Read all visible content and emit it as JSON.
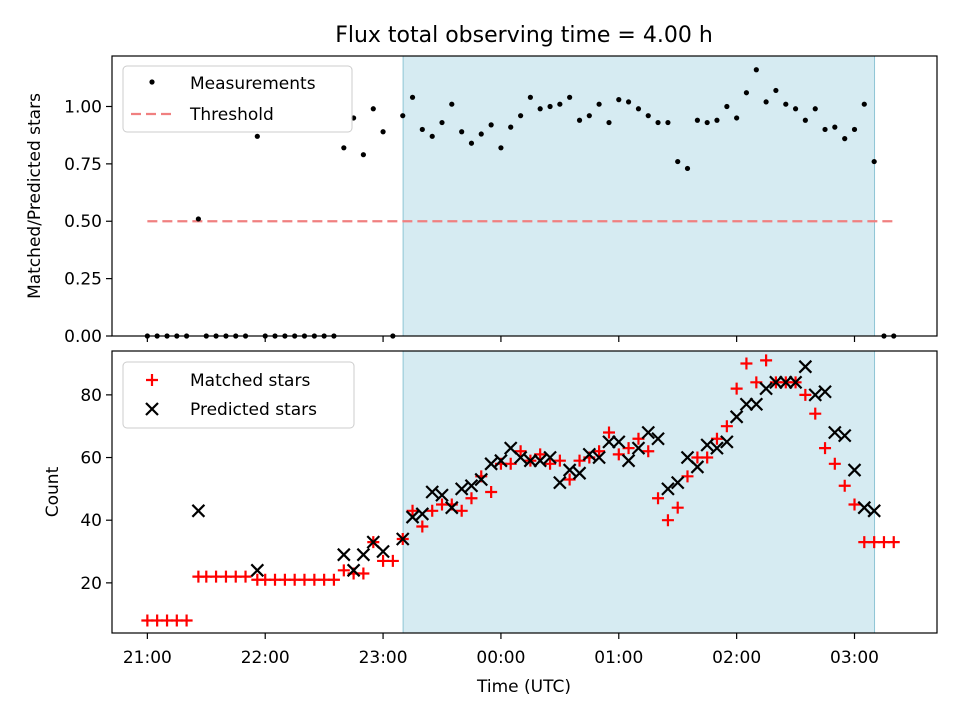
{
  "title": "Flux total observing time = 4.00 h",
  "chart_data": [
    {
      "type": "scatter",
      "panel": "ratio",
      "ylabel": "Matched/Predicted stars",
      "ylim": [
        0,
        1.22
      ],
      "yticks": [
        0.0,
        0.25,
        0.5,
        0.75,
        1.0
      ],
      "ytick_labels": [
        "0.00",
        "0.25",
        "0.50",
        "0.75",
        "1.00"
      ],
      "xlim": [
        -0.3,
        6.7
      ],
      "shaded_span": [
        2.17,
        6.17
      ],
      "legend_position": "upper-left",
      "threshold": {
        "name": "Threshold",
        "value": 0.5,
        "x_range": [
          0.0,
          6.33
        ],
        "color": "#f08080"
      },
      "series": [
        {
          "name": "Measurements",
          "color": "#000000",
          "x": [
            0.0,
            0.083,
            0.167,
            0.25,
            0.333,
            0.433,
            0.5,
            0.583,
            0.667,
            0.75,
            0.833,
            0.933,
            1.0,
            1.083,
            1.167,
            1.25,
            1.333,
            1.417,
            1.5,
            1.583,
            1.667,
            1.75,
            1.833,
            1.917,
            2.0,
            2.083,
            2.167,
            2.25,
            2.333,
            2.417,
            2.5,
            2.583,
            2.667,
            2.75,
            2.833,
            2.917,
            3.0,
            3.083,
            3.167,
            3.25,
            3.333,
            3.417,
            3.5,
            3.583,
            3.667,
            3.75,
            3.833,
            3.917,
            4.0,
            4.083,
            4.167,
            4.25,
            4.333,
            4.417,
            4.5,
            4.583,
            4.667,
            4.75,
            4.833,
            4.917,
            5.0,
            5.083,
            5.167,
            5.25,
            5.333,
            5.417,
            5.5,
            5.583,
            5.667,
            5.75,
            5.833,
            5.917,
            6.0,
            6.083,
            6.167,
            6.25,
            6.333
          ],
          "y": [
            0.0,
            0.0,
            0.0,
            0.0,
            0.0,
            0.51,
            0.0,
            0.0,
            0.0,
            0.0,
            0.0,
            0.87,
            0.0,
            0.0,
            0.0,
            0.0,
            0.0,
            0.0,
            0.0,
            0.0,
            0.82,
            0.95,
            0.79,
            0.99,
            0.89,
            0.0,
            0.96,
            1.04,
            0.9,
            0.87,
            0.93,
            1.01,
            0.89,
            0.84,
            0.88,
            0.92,
            0.82,
            0.91,
            0.96,
            1.04,
            0.99,
            1.0,
            1.01,
            1.04,
            0.94,
            0.96,
            1.01,
            0.93,
            1.03,
            1.02,
            0.99,
            0.96,
            0.93,
            0.93,
            0.76,
            0.73,
            0.94,
            0.93,
            0.94,
            1.0,
            0.95,
            1.06,
            1.16,
            1.02,
            1.07,
            1.01,
            0.99,
            0.94,
            0.99,
            0.9,
            0.91,
            0.86,
            0.9,
            1.01,
            0.76,
            0.0,
            0.0
          ]
        }
      ]
    },
    {
      "type": "scatter",
      "panel": "counts",
      "xlabel": "Time (UTC)",
      "ylabel": "Count",
      "ylim": [
        4,
        94
      ],
      "yticks": [
        20,
        40,
        60,
        80
      ],
      "xlim": [
        -0.3,
        6.7
      ],
      "xticks": [
        0,
        1,
        2,
        3,
        4,
        5,
        6
      ],
      "xtick_labels": [
        "21:00",
        "22:00",
        "23:00",
        "00:00",
        "01:00",
        "02:00",
        "03:00"
      ],
      "shaded_span": [
        2.17,
        6.17
      ],
      "legend_position": "upper-left",
      "series": [
        {
          "name": "Matched stars",
          "marker": "plus",
          "color": "#ff0000",
          "x": [
            0.0,
            0.083,
            0.167,
            0.25,
            0.333,
            0.433,
            0.5,
            0.583,
            0.667,
            0.75,
            0.833,
            0.933,
            1.0,
            1.083,
            1.167,
            1.25,
            1.333,
            1.417,
            1.5,
            1.583,
            1.667,
            1.75,
            1.833,
            1.917,
            2.0,
            2.083,
            2.167,
            2.25,
            2.333,
            2.417,
            2.5,
            2.583,
            2.667,
            2.75,
            2.833,
            2.917,
            3.0,
            3.083,
            3.167,
            3.25,
            3.333,
            3.417,
            3.5,
            3.583,
            3.667,
            3.75,
            3.833,
            3.917,
            4.0,
            4.083,
            4.167,
            4.25,
            4.333,
            4.417,
            4.5,
            4.583,
            4.667,
            4.75,
            4.833,
            4.917,
            5.0,
            5.083,
            5.167,
            5.25,
            5.333,
            5.417,
            5.5,
            5.583,
            5.667,
            5.75,
            5.833,
            5.917,
            6.0,
            6.083,
            6.167,
            6.25,
            6.333
          ],
          "y": [
            8,
            8,
            8,
            8,
            8,
            22,
            22,
            22,
            22,
            22,
            22,
            21,
            21,
            21,
            21,
            21,
            21,
            21,
            21,
            21,
            24,
            23,
            23,
            33,
            27,
            27,
            34,
            43,
            38,
            43,
            45,
            45,
            43,
            47,
            54,
            49,
            58,
            58,
            62,
            59,
            61,
            58,
            59,
            53,
            59,
            60,
            62,
            68,
            61,
            63,
            66,
            62,
            47,
            40,
            44,
            54,
            60,
            60,
            66,
            70,
            82,
            90,
            84,
            91,
            84,
            84,
            84,
            80,
            74,
            63,
            58,
            51,
            45,
            33,
            33,
            33,
            33
          ]
        },
        {
          "name": "Predicted stars",
          "marker": "x",
          "color": "#000000",
          "x": [
            0.433,
            0.933,
            1.667,
            1.75,
            1.833,
            1.917,
            2.0,
            2.167,
            2.25,
            2.333,
            2.417,
            2.5,
            2.583,
            2.667,
            2.75,
            2.833,
            2.917,
            3.0,
            3.083,
            3.167,
            3.25,
            3.333,
            3.417,
            3.5,
            3.583,
            3.667,
            3.75,
            3.833,
            3.917,
            4.0,
            4.083,
            4.167,
            4.25,
            4.333,
            4.417,
            4.5,
            4.583,
            4.667,
            4.75,
            4.833,
            4.917,
            5.0,
            5.083,
            5.167,
            5.25,
            5.333,
            5.417,
            5.5,
            5.583,
            5.667,
            5.75,
            5.833,
            5.917,
            6.0,
            6.083,
            6.167
          ],
          "y": [
            43,
            24,
            29,
            24,
            29,
            33,
            30,
            34,
            41,
            42,
            49,
            48,
            44,
            50,
            51,
            53,
            58,
            59,
            63,
            60,
            59,
            59,
            60,
            52,
            56,
            55,
            61,
            60,
            65,
            65,
            59,
            63,
            68,
            66,
            50,
            52,
            60,
            57,
            64,
            63,
            65,
            73,
            77,
            77,
            82,
            84,
            84,
            84,
            89,
            80,
            81,
            68,
            67,
            56,
            44,
            43
          ]
        }
      ]
    }
  ]
}
